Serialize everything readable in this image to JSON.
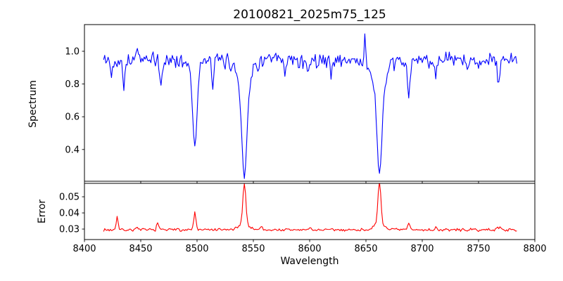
{
  "figure": {
    "title": "20100821_2025m75_125",
    "xlabel": "Wavelength",
    "ylabel_top": "Spectrum",
    "ylabel_bottom": "Error",
    "background_color": "#ffffff",
    "frame_color": "#000000"
  },
  "chart_data": [
    {
      "type": "line",
      "name": "spectrum",
      "title": "20100821_2025m75_125",
      "ylabel": "Spectrum",
      "color": "#0000ff",
      "legend": "none",
      "grid": false,
      "xlim": [
        8400,
        8800
      ],
      "ylim": [
        0.206,
        1.163
      ],
      "yticks": [
        0.4,
        0.6,
        0.8,
        1.0
      ],
      "yticklabels": [
        "0.4",
        "0.6",
        "0.8",
        "1.0"
      ],
      "xticks": [
        8400,
        8450,
        8500,
        8550,
        8600,
        8650,
        8700,
        8750,
        8800
      ],
      "x_start": 8417,
      "x_end": 8784,
      "x_step": 1.0,
      "continuum": 0.945,
      "noise_amplitude": 0.058,
      "noise_seed": 42,
      "absorption_lines": [
        {
          "center": 8424,
          "depth": 0.09,
          "sigma": 1.0
        },
        {
          "center": 8435,
          "depth": 0.14,
          "sigma": 1.0
        },
        {
          "center": 8468,
          "depth": 0.16,
          "sigma": 1.1
        },
        {
          "center": 8498,
          "depth": 0.45,
          "sigma": 1.8
        },
        {
          "center": 8498,
          "depth": 0.07,
          "sigma": 4.5
        },
        {
          "center": 8514,
          "depth": 0.14,
          "sigma": 1.1
        },
        {
          "center": 8542,
          "depth": 0.56,
          "sigma": 2.2
        },
        {
          "center": 8542,
          "depth": 0.15,
          "sigma": 6.0
        },
        {
          "center": 8578,
          "depth": 0.09,
          "sigma": 1.0
        },
        {
          "center": 8598,
          "depth": 0.08,
          "sigma": 1.0
        },
        {
          "center": 8619,
          "depth": 0.08,
          "sigma": 1.0
        },
        {
          "center": 8662,
          "depth": 0.53,
          "sigma": 2.2
        },
        {
          "center": 8662,
          "depth": 0.16,
          "sigma": 6.5
        },
        {
          "center": 8688,
          "depth": 0.22,
          "sigma": 1.3
        },
        {
          "center": 8712,
          "depth": 0.09,
          "sigma": 1.0
        },
        {
          "center": 8741,
          "depth": 0.07,
          "sigma": 1.0
        },
        {
          "center": 8768,
          "depth": 0.13,
          "sigma": 1.2
        }
      ],
      "emission_spikes": [
        {
          "center": 8447,
          "height": 0.13,
          "sigma": 0.7
        },
        {
          "center": 8649,
          "height": 0.14,
          "sigma": 0.7
        }
      ]
    },
    {
      "type": "line",
      "name": "error",
      "ylabel": "Error",
      "xlabel": "Wavelength",
      "color": "#ff0000",
      "legend": "none",
      "grid": false,
      "xlim": [
        8400,
        8800
      ],
      "ylim": [
        0.0235,
        0.0583
      ],
      "yticks": [
        0.03,
        0.04,
        0.05
      ],
      "yticklabels": [
        "0.03",
        "0.04",
        "0.05"
      ],
      "xticks": [
        8400,
        8450,
        8500,
        8550,
        8600,
        8650,
        8700,
        8750,
        8800
      ],
      "xticklabels": [
        "8400",
        "8450",
        "8500",
        "8550",
        "8600",
        "8650",
        "8700",
        "8750",
        "8800"
      ],
      "x_start": 8417,
      "x_end": 8784,
      "x_step": 1.0,
      "baseline": 0.0295,
      "noise_amplitude": 0.0011,
      "noise_seed": 7,
      "spikes": [
        {
          "center": 8429,
          "height": 0.009,
          "sigma": 0.8
        },
        {
          "center": 8446,
          "height": 0.002,
          "sigma": 0.8
        },
        {
          "center": 8465,
          "height": 0.0048,
          "sigma": 0.8
        },
        {
          "center": 8483,
          "height": 0.0015,
          "sigma": 0.8
        },
        {
          "center": 8498,
          "height": 0.0105,
          "sigma": 1.0
        },
        {
          "center": 8542,
          "height": 0.0265,
          "sigma": 1.3
        },
        {
          "center": 8542,
          "height": 0.003,
          "sigma": 5.0
        },
        {
          "center": 8557,
          "height": 0.0018,
          "sigma": 1.2
        },
        {
          "center": 8600,
          "height": 0.0012,
          "sigma": 1.0
        },
        {
          "center": 8662,
          "height": 0.0265,
          "sigma": 1.3
        },
        {
          "center": 8662,
          "height": 0.0032,
          "sigma": 5.0
        },
        {
          "center": 8688,
          "height": 0.004,
          "sigma": 1.0
        },
        {
          "center": 8712,
          "height": 0.0013,
          "sigma": 1.0
        },
        {
          "center": 8768,
          "height": 0.0018,
          "sigma": 1.5
        }
      ]
    }
  ]
}
